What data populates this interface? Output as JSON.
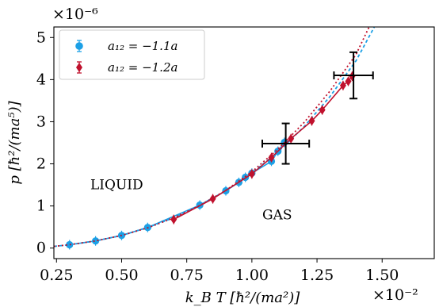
{
  "chart_data": {
    "type": "scatter",
    "title": "",
    "xlabel": "k_B T   [ħ²/(ma²)]",
    "ylabel": "p   [ħ²/(ma⁵)]",
    "x_multiplier": "×10⁻²",
    "y_multiplier": "×10⁻⁶",
    "xlim": [
      0.24,
      1.7
    ],
    "ylim": [
      -0.25,
      5.25
    ],
    "xticks": [
      0.25,
      0.5,
      0.75,
      1.0,
      1.25,
      1.5
    ],
    "xtick_labels": [
      "0.25",
      "0.50",
      "0.75",
      "1.00",
      "1.25",
      "1.50"
    ],
    "yticks": [
      0,
      1,
      2,
      3,
      4,
      5
    ],
    "ytick_labels": [
      "0",
      "1",
      "2",
      "3",
      "4",
      "5"
    ],
    "grid": false,
    "legend_position": "top-left",
    "annotations": [
      {
        "text": "LIQUID",
        "x": 0.38,
        "y": 1.4
      },
      {
        "text": "GAS",
        "x": 1.04,
        "y": 0.68
      }
    ],
    "series": [
      {
        "name": "a₁₂ = −1.1a",
        "color": "#1ca0e6",
        "marker": "circle",
        "x": [
          0.3,
          0.4,
          0.5,
          0.6,
          0.8,
          0.9,
          0.95,
          0.975,
          1.0,
          1.075,
          1.1,
          1.125
        ],
        "y": [
          0.08,
          0.17,
          0.3,
          0.49,
          1.02,
          1.36,
          1.56,
          1.68,
          1.78,
          2.06,
          2.3,
          2.51
        ],
        "fit_x": [
          0.24,
          0.3,
          0.4,
          0.5,
          0.6,
          0.7,
          0.8,
          0.9,
          1.0,
          1.1,
          1.2,
          1.3,
          1.4,
          1.47
        ],
        "fit_y": [
          0.04,
          0.08,
          0.17,
          0.3,
          0.49,
          0.72,
          1.02,
          1.36,
          1.78,
          2.28,
          2.88,
          3.6,
          4.45,
          5.25
        ]
      },
      {
        "name": "a₁₂ = −1.2a",
        "color": "#c0112d",
        "marker": "diamond",
        "x": [
          0.7,
          0.85,
          1.0,
          1.075,
          1.15,
          1.23,
          1.27,
          1.35,
          1.37,
          1.385
        ],
        "y": [
          0.68,
          1.17,
          1.76,
          2.15,
          2.6,
          3.02,
          3.28,
          3.86,
          3.96,
          4.08
        ],
        "fit_x": [
          0.24,
          0.3,
          0.4,
          0.5,
          0.6,
          0.7,
          0.8,
          0.9,
          1.0,
          1.1,
          1.2,
          1.3,
          1.4,
          1.45
        ],
        "fit_y": [
          0.04,
          0.08,
          0.17,
          0.3,
          0.48,
          0.72,
          1.01,
          1.37,
          1.81,
          2.35,
          2.98,
          3.73,
          4.6,
          5.25
        ]
      }
    ],
    "critical_points": [
      {
        "x": 1.13,
        "y": 2.48,
        "xerr": 0.09,
        "yerr": 0.48
      },
      {
        "x": 1.39,
        "y": 4.1,
        "xerr": 0.075,
        "yerr": 0.55
      }
    ]
  }
}
